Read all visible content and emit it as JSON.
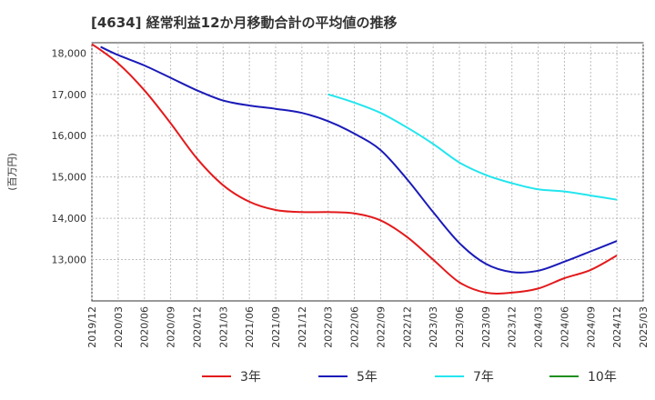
{
  "chart_data": {
    "type": "line",
    "title": "[4634]  経常利益12か月移動合計の平均値の推移",
    "ylabel": "(百万円)",
    "xlabel": "",
    "ylim": [
      12000,
      18250
    ],
    "y_ticks": [
      13000,
      14000,
      15000,
      16000,
      17000,
      18000
    ],
    "y_tick_labels": [
      "13,000",
      "14,000",
      "15,000",
      "16,000",
      "17,000",
      "18,000"
    ],
    "x_tick_labels": [
      "2019/12",
      "2020/03",
      "2020/06",
      "2020/09",
      "2020/12",
      "2021/03",
      "2021/06",
      "2021/09",
      "2021/12",
      "2022/03",
      "2022/06",
      "2022/09",
      "2022/12",
      "2023/03",
      "2023/06",
      "2023/09",
      "2023/12",
      "2024/03",
      "2024/06",
      "2024/09",
      "2024/12",
      "2025/03"
    ],
    "grid": true,
    "legend_position": "bottom",
    "series": [
      {
        "name": "3年",
        "color": "#e31a1c",
        "x": [
          "2019/12",
          "2020/03",
          "2020/06",
          "2020/09",
          "2020/12",
          "2021/03",
          "2021/06",
          "2021/09",
          "2021/12",
          "2022/03",
          "2022/06",
          "2022/09",
          "2022/12",
          "2023/03",
          "2023/06",
          "2023/09",
          "2023/12",
          "2024/03",
          "2024/06",
          "2024/09",
          "2024/12"
        ],
        "values": [
          18220,
          17750,
          17100,
          16300,
          15450,
          14800,
          14400,
          14200,
          14150,
          14150,
          14120,
          13950,
          13550,
          13000,
          12450,
          12200,
          12200,
          12300,
          12550,
          12750,
          13100
        ]
      },
      {
        "name": "5年",
        "color": "#1a1ab8",
        "x": [
          "2020/01",
          "2020/03",
          "2020/06",
          "2020/09",
          "2020/12",
          "2021/03",
          "2021/06",
          "2021/09",
          "2021/12",
          "2022/03",
          "2022/06",
          "2022/09",
          "2022/12",
          "2023/03",
          "2023/06",
          "2023/09",
          "2023/12",
          "2024/03",
          "2024/06",
          "2024/09",
          "2024/12"
        ],
        "values": [
          18150,
          17950,
          17700,
          17400,
          17100,
          16850,
          16730,
          16650,
          16550,
          16350,
          16050,
          15650,
          14950,
          14150,
          13400,
          12900,
          12700,
          12730,
          12950,
          13200,
          13450
        ]
      },
      {
        "name": "7年",
        "color": "#22e5ee",
        "x": [
          "2022/03",
          "2022/06",
          "2022/09",
          "2022/12",
          "2023/03",
          "2023/06",
          "2023/09",
          "2023/12",
          "2024/03",
          "2024/06",
          "2024/09",
          "2024/12"
        ],
        "values": [
          17000,
          16800,
          16550,
          16200,
          15800,
          15350,
          15050,
          14850,
          14700,
          14650,
          14550,
          14450
        ]
      },
      {
        "name": "10年",
        "color": "#1f8f1f",
        "x": [],
        "values": []
      }
    ]
  }
}
